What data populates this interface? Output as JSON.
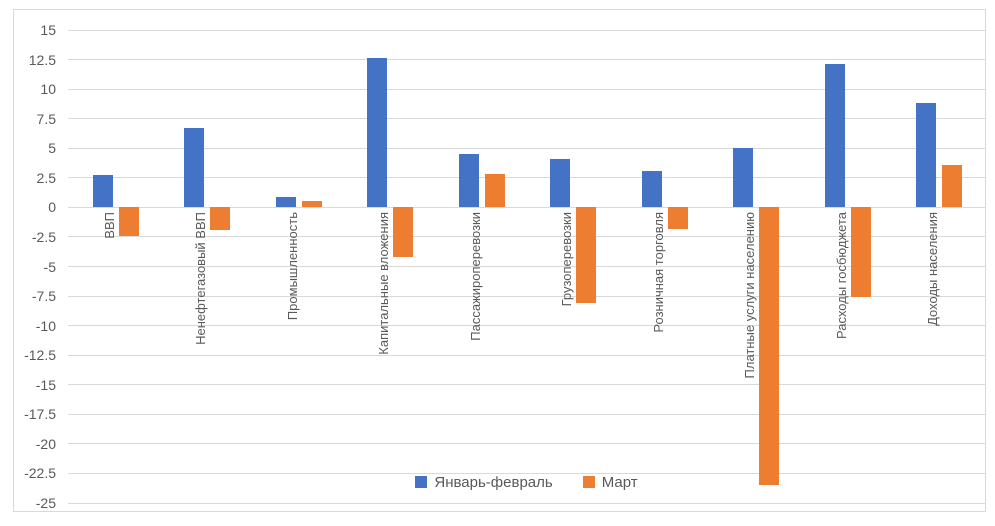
{
  "chart_data": {
    "type": "bar",
    "title": "",
    "categories": [
      "ВВП",
      "Ненефтегазовый ВВП",
      "Промышленность",
      "Капитальные вложения",
      "Пассажироперевозки",
      "Грузоперевозки",
      "Розничная торговля",
      "Платные услуги населению",
      "Расходы госбюджета",
      "Доходы населения"
    ],
    "series": [
      {
        "name": "Январь-февраль",
        "color": "#4472C4",
        "values": [
          2.7,
          6.7,
          0.9,
          12.6,
          4.5,
          4.1,
          3.1,
          5.0,
          12.1,
          8.8
        ]
      },
      {
        "name": "Март",
        "color": "#ED7D31",
        "values": [
          -2.4,
          -1.9,
          0.5,
          -4.2,
          2.8,
          -8.1,
          -1.8,
          -23.5,
          -7.6,
          3.6
        ]
      }
    ],
    "ylim": [
      -25,
      15
    ],
    "ytick_step": 2.5,
    "grid": true,
    "legend_position": "bottom-center",
    "colors": {
      "gridline": "#D9D9D9",
      "axis_text": "#595959",
      "frame_border": "#D9D9D9"
    }
  }
}
